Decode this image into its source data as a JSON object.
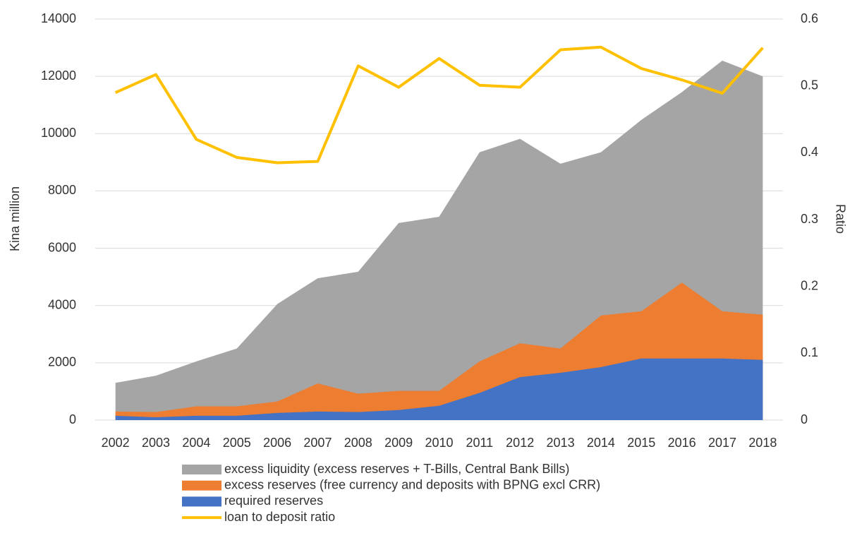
{
  "chart_data": {
    "type": "area",
    "categories": [
      "2002",
      "2003",
      "2004",
      "2005",
      "2006",
      "2007",
      "2008",
      "2009",
      "2010",
      "2011",
      "2012",
      "2013",
      "2014",
      "2015",
      "2016",
      "2017",
      "2018"
    ],
    "series": [
      {
        "name": "excess liquidity (excess reserves + T-Bills, Central Bank Bills)",
        "color": "#a5a5a5",
        "type": "area",
        "values": [
          1300,
          1550,
          2050,
          2500,
          4050,
          4950,
          5180,
          6880,
          7100,
          9350,
          9820,
          8950,
          9350,
          10480,
          11450,
          12550,
          12000
        ]
      },
      {
        "name": "excess reserves (free currency and deposits with BPNG excl CRR)",
        "color": "#ed7d31",
        "type": "area",
        "values": [
          300,
          280,
          480,
          480,
          650,
          1280,
          920,
          1020,
          1020,
          2050,
          2680,
          2500,
          3650,
          3800,
          4800,
          3800,
          3680
        ]
      },
      {
        "name": "required reserves",
        "color": "#4472c4",
        "type": "area",
        "values": [
          150,
          100,
          150,
          150,
          250,
          300,
          280,
          350,
          500,
          950,
          1500,
          1650,
          1850,
          2150,
          2150,
          2150,
          2100
        ]
      },
      {
        "name": "loan to deposit ratio",
        "color": "#ffc000",
        "type": "line",
        "axis": "y2",
        "values": [
          0.49,
          0.517,
          0.42,
          0.393,
          0.385,
          0.387,
          0.53,
          0.498,
          0.541,
          0.501,
          0.498,
          0.554,
          0.558,
          0.526,
          0.509,
          0.489,
          0.557
        ]
      }
    ],
    "y_label": "Kina million",
    "y2_label": "Ratio",
    "ylim": [
      0,
      14000
    ],
    "yticks": [
      0,
      2000,
      4000,
      6000,
      8000,
      10000,
      12000,
      14000
    ],
    "y2lim": [
      0,
      0.6
    ],
    "y2ticks": [
      0,
      0.1,
      0.2,
      0.3,
      0.4,
      0.5,
      0.6
    ],
    "grid": true,
    "legend": "bottom"
  }
}
